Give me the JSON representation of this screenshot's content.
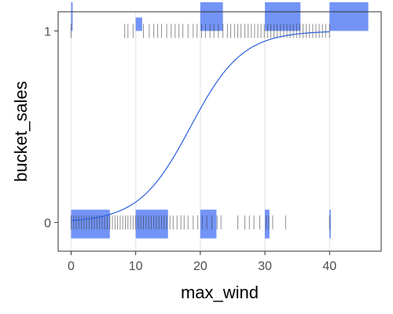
{
  "chart_data": {
    "type": "scatter",
    "title": "",
    "xlabel": "max_wind",
    "ylabel": "bucket_sales",
    "xlim": [
      -2,
      48
    ],
    "ylim": [
      -0.15,
      1.1
    ],
    "x_ticks": [
      0,
      10,
      20,
      30,
      40
    ],
    "x_tick_labels": [
      "0",
      "10",
      "20",
      "30",
      "40"
    ],
    "y_ticks": [
      0,
      1
    ],
    "y_tick_labels": [
      "0",
      "1"
    ],
    "grid": "vertical-major",
    "legend": "none",
    "colors": {
      "bars": "#6b8ef7",
      "curve": "#2b5fe0",
      "rug": "#333333",
      "grid": "#ebebeb",
      "frame": "#333333"
    },
    "histogram_y1": [
      {
        "x0": 0,
        "x1": 0.25,
        "height": 0.15
      },
      {
        "x0": 10,
        "x1": 11,
        "height": 0.07
      },
      {
        "x0": 20,
        "x1": 23.5,
        "height": 0.15
      },
      {
        "x0": 30,
        "x1": 35.5,
        "height": 0.15
      },
      {
        "x0": 40,
        "x1": 46,
        "height": 0.15
      }
    ],
    "histogram_y0": [
      {
        "x0": 0,
        "x1": 6,
        "height": 0.15
      },
      {
        "x0": 10,
        "x1": 15,
        "height": 0.15
      },
      {
        "x0": 20,
        "x1": 22.5,
        "height": 0.15
      },
      {
        "x0": 30,
        "x1": 30.7,
        "height": 0.15
      },
      {
        "x0": 40,
        "x1": 40.2,
        "height": 0.15
      }
    ],
    "rug_y1": [
      0,
      8.3,
      8.8,
      9.6,
      11.2,
      12.1,
      12.8,
      13.4,
      14.0,
      14.8,
      15.5,
      16.1,
      16.7,
      17.3,
      18.1,
      18.9,
      19.5,
      20.2,
      20.8,
      21.5,
      22.1,
      22.8,
      23.5,
      24.2,
      24.7,
      25.3,
      25.8,
      26.3,
      26.9,
      27.4,
      27.9,
      28.4,
      28.9,
      29.4,
      29.9,
      30.4,
      30.9,
      31.4,
      31.9,
      32.4,
      32.9,
      33.4,
      33.9,
      34.4,
      34.9,
      35.4,
      35.9,
      36.4,
      36.9,
      37.4,
      37.9,
      38.4,
      38.9,
      39.4,
      40.0
    ],
    "rug_y0": [
      0,
      0.4,
      0.8,
      1.2,
      1.6,
      2.0,
      2.4,
      2.8,
      3.2,
      3.6,
      4.0,
      4.4,
      4.8,
      5.2,
      5.6,
      6.0,
      6.4,
      6.8,
      7.2,
      7.6,
      8.0,
      8.4,
      8.8,
      9.2,
      9.6,
      10.0,
      10.4,
      10.8,
      11.2,
      11.6,
      12.0,
      12.4,
      12.8,
      13.2,
      13.6,
      14.0,
      14.4,
      14.8,
      15.3,
      15.8,
      16.4,
      17.0,
      17.5,
      18.1,
      18.9,
      19.6,
      20.3,
      21.0,
      21.8,
      22.6,
      23.2,
      25.8,
      26.9,
      27.6,
      28.3,
      29.2,
      30.2,
      30.6,
      31.2,
      33.2,
      40.0
    ],
    "curve": {
      "midpoint": 18.5,
      "slope": 0.25,
      "x_range": [
        0,
        40
      ]
    }
  }
}
